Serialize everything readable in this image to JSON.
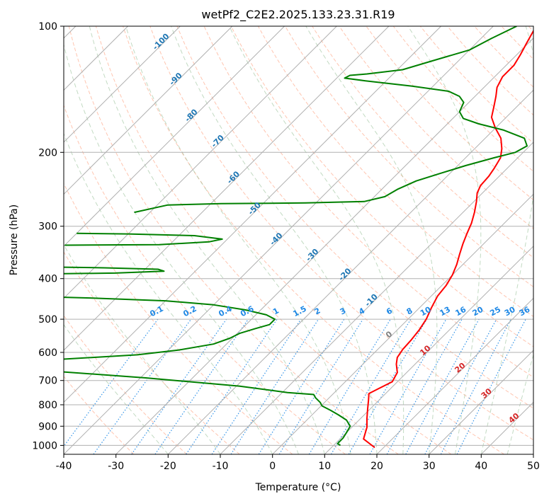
{
  "chart_data": {
    "type": "line",
    "title": "wetPf2_C2E2.2025.133.23.31.R19",
    "xlabel": "Temperature (°C)",
    "ylabel": "Pressure (hPa)",
    "xlim": [
      -40,
      50
    ],
    "ylim": [
      1050,
      100
    ],
    "y_scale": "log",
    "x_ticks": [
      "-40",
      "-30",
      "-20",
      "-10",
      "0",
      "10",
      "20",
      "30",
      "40",
      "50"
    ],
    "y_ticks": [
      "100",
      "200",
      "300",
      "400",
      "500",
      "600",
      "700",
      "800",
      "900",
      "1000"
    ],
    "grid": true,
    "skew": 35,
    "series": [
      {
        "color": "#ff0000",
        "points": [
          [
            18.3,
            1012
          ],
          [
            14.5,
            965
          ],
          [
            12.9,
            905
          ],
          [
            11.2,
            862
          ],
          [
            9.5,
            818
          ],
          [
            8.0,
            780
          ],
          [
            6.8,
            752
          ],
          [
            7.8,
            730
          ],
          [
            9.0,
            705
          ],
          [
            8.2,
            670
          ],
          [
            6.4,
            640
          ],
          [
            5.3,
            617
          ],
          [
            4.8,
            590
          ],
          [
            4.6,
            560
          ],
          [
            4.2,
            530
          ],
          [
            3.5,
            500
          ],
          [
            2.3,
            470
          ],
          [
            1.2,
            440
          ],
          [
            0.8,
            415
          ],
          [
            0.0,
            392
          ],
          [
            -1.2,
            370
          ],
          [
            -2.6,
            350
          ],
          [
            -4.0,
            330
          ],
          [
            -5.2,
            312
          ],
          [
            -6.3,
            295
          ],
          [
            -7.8,
            278
          ],
          [
            -9.5,
            262
          ],
          [
            -11.0,
            250
          ],
          [
            -11.8,
            240
          ],
          [
            -12.0,
            228
          ],
          [
            -12.5,
            218
          ],
          [
            -13.3,
            206
          ],
          [
            -14.8,
            196
          ],
          [
            -17.0,
            185
          ],
          [
            -20.0,
            175
          ],
          [
            -22.8,
            165
          ],
          [
            -24.5,
            155
          ],
          [
            -26.0,
            147
          ],
          [
            -27.5,
            140
          ],
          [
            -28.5,
            132
          ],
          [
            -28.5,
            124
          ],
          [
            -29.3,
            117
          ],
          [
            -30.3,
            110
          ],
          [
            -31.8,
            100
          ]
        ]
      },
      {
        "color": "#008000",
        "points": [
          [
            11.3,
            1000
          ],
          [
            10.4,
            990
          ],
          [
            10.4,
            960
          ],
          [
            9.9,
            925
          ],
          [
            9.5,
            900
          ],
          [
            7.6,
            870
          ],
          [
            5.0,
            845
          ],
          [
            2.7,
            825
          ],
          [
            0.2,
            805
          ],
          [
            -0.8,
            790
          ],
          [
            -2.6,
            770
          ],
          [
            -3.6,
            756
          ],
          [
            -9.0,
            748
          ],
          [
            -19.5,
            722
          ],
          [
            -39.0,
            690
          ],
          [
            -58.0,
            665
          ],
          [
            -65.5,
            643
          ],
          [
            -63.0,
            628
          ],
          [
            -45.0,
            608
          ],
          [
            -38.0,
            592
          ],
          [
            -32.5,
            573
          ],
          [
            -30.5,
            555
          ],
          [
            -29.5,
            540
          ],
          [
            -27.5,
            527
          ],
          [
            -25.5,
            515
          ],
          [
            -25.5,
            500
          ],
          [
            -28.0,
            488
          ],
          [
            -33.0,
            475
          ],
          [
            -40.0,
            462
          ],
          [
            -50.0,
            452
          ],
          [
            -65.0,
            445
          ],
          [
            -80.0,
            440
          ]
        ]
      },
      {
        "color": "#008000",
        "points": [
          [
            -80.0,
            390
          ],
          [
            -65.0,
            388
          ],
          [
            -56.0,
            384
          ],
          [
            -57.5,
            380
          ],
          [
            -68.0,
            377
          ],
          [
            -80.0,
            375
          ]
        ]
      },
      {
        "color": "#008000",
        "points": [
          [
            -80.0,
            333
          ],
          [
            -62.0,
            332
          ],
          [
            -53.0,
            327
          ],
          [
            -51.0,
            322
          ],
          [
            -57.0,
            316
          ],
          [
            -70.0,
            313
          ],
          [
            -80.0,
            312
          ]
        ]
      },
      {
        "color": "#008000",
        "points": [
          [
            -73.0,
            278
          ],
          [
            -68.0,
            267
          ],
          [
            -58.0,
            265
          ],
          [
            -42.0,
            264
          ],
          [
            -31.0,
            262
          ],
          [
            -28.0,
            255
          ],
          [
            -27.0,
            245
          ],
          [
            -25.0,
            234
          ],
          [
            -22.0,
            225
          ],
          [
            -18.5,
            215
          ],
          [
            -14.5,
            206
          ],
          [
            -11.5,
            200
          ],
          [
            -10.5,
            193
          ],
          [
            -12.5,
            185
          ],
          [
            -18.0,
            177
          ],
          [
            -24.0,
            171
          ],
          [
            -28.0,
            166
          ],
          [
            -30.0,
            160
          ],
          [
            -31.0,
            152
          ],
          [
            -33.0,
            147
          ],
          [
            -36.0,
            143
          ],
          [
            -44.0,
            139
          ],
          [
            -54.0,
            135
          ],
          [
            -58.5,
            133
          ],
          [
            -58.0,
            131
          ],
          [
            -55.0,
            130
          ],
          [
            -49.0,
            127
          ],
          [
            -45.0,
            121
          ],
          [
            -40.0,
            114
          ],
          [
            -38.0,
            107
          ],
          [
            -35.5,
            100
          ]
        ]
      }
    ],
    "isotherm_labels": [
      "-100",
      "-90",
      "-80",
      "-70",
      "-60",
      "-50",
      "-40",
      "-30",
      "-20",
      "-10"
    ],
    "isotherm_label_levels": [
      [
        -100,
        110
      ],
      [
        -90,
        135
      ],
      [
        -80,
        165
      ],
      [
        -70,
        190
      ],
      [
        -60,
        232
      ],
      [
        -50,
        275
      ],
      [
        -40,
        325
      ],
      [
        -30,
        355
      ],
      [
        -20,
        395
      ],
      [
        -10,
        455
      ]
    ],
    "isotherm_label_color": "#1f77b4",
    "mixing_ratio_labels": [
      "0.1",
      "0.2",
      "0.4",
      "0.6",
      "1",
      "1.5",
      "2",
      "3",
      "4",
      "6",
      "8",
      "10",
      "13",
      "16",
      "20",
      "25",
      "30",
      "36"
    ],
    "mixing_ratio_values": [
      0.1,
      0.2,
      0.4,
      0.6,
      1,
      1.5,
      2,
      3,
      4,
      6,
      8,
      10,
      13,
      16,
      20,
      25,
      30,
      36
    ],
    "mixing_ratio_color": "#1e88e5",
    "moist_adiabat_labels": [
      "0",
      "10",
      "20",
      "30",
      "40"
    ],
    "moist_adiabat_label_colors": [
      "#808080",
      "#d62728",
      "#d62728",
      "#d62728",
      "#d62728"
    ],
    "moist_adiabat_label_points": [
      [
        0,
        550
      ],
      [
        10,
        600
      ],
      [
        20,
        660
      ],
      [
        30,
        760
      ],
      [
        40,
        870
      ]
    ],
    "colors": {
      "grid": "#b0b0b0",
      "dry_adiabat": "#ff7f50",
      "moist_adiabat": "#8fbc8f",
      "frame": "#000000"
    }
  }
}
